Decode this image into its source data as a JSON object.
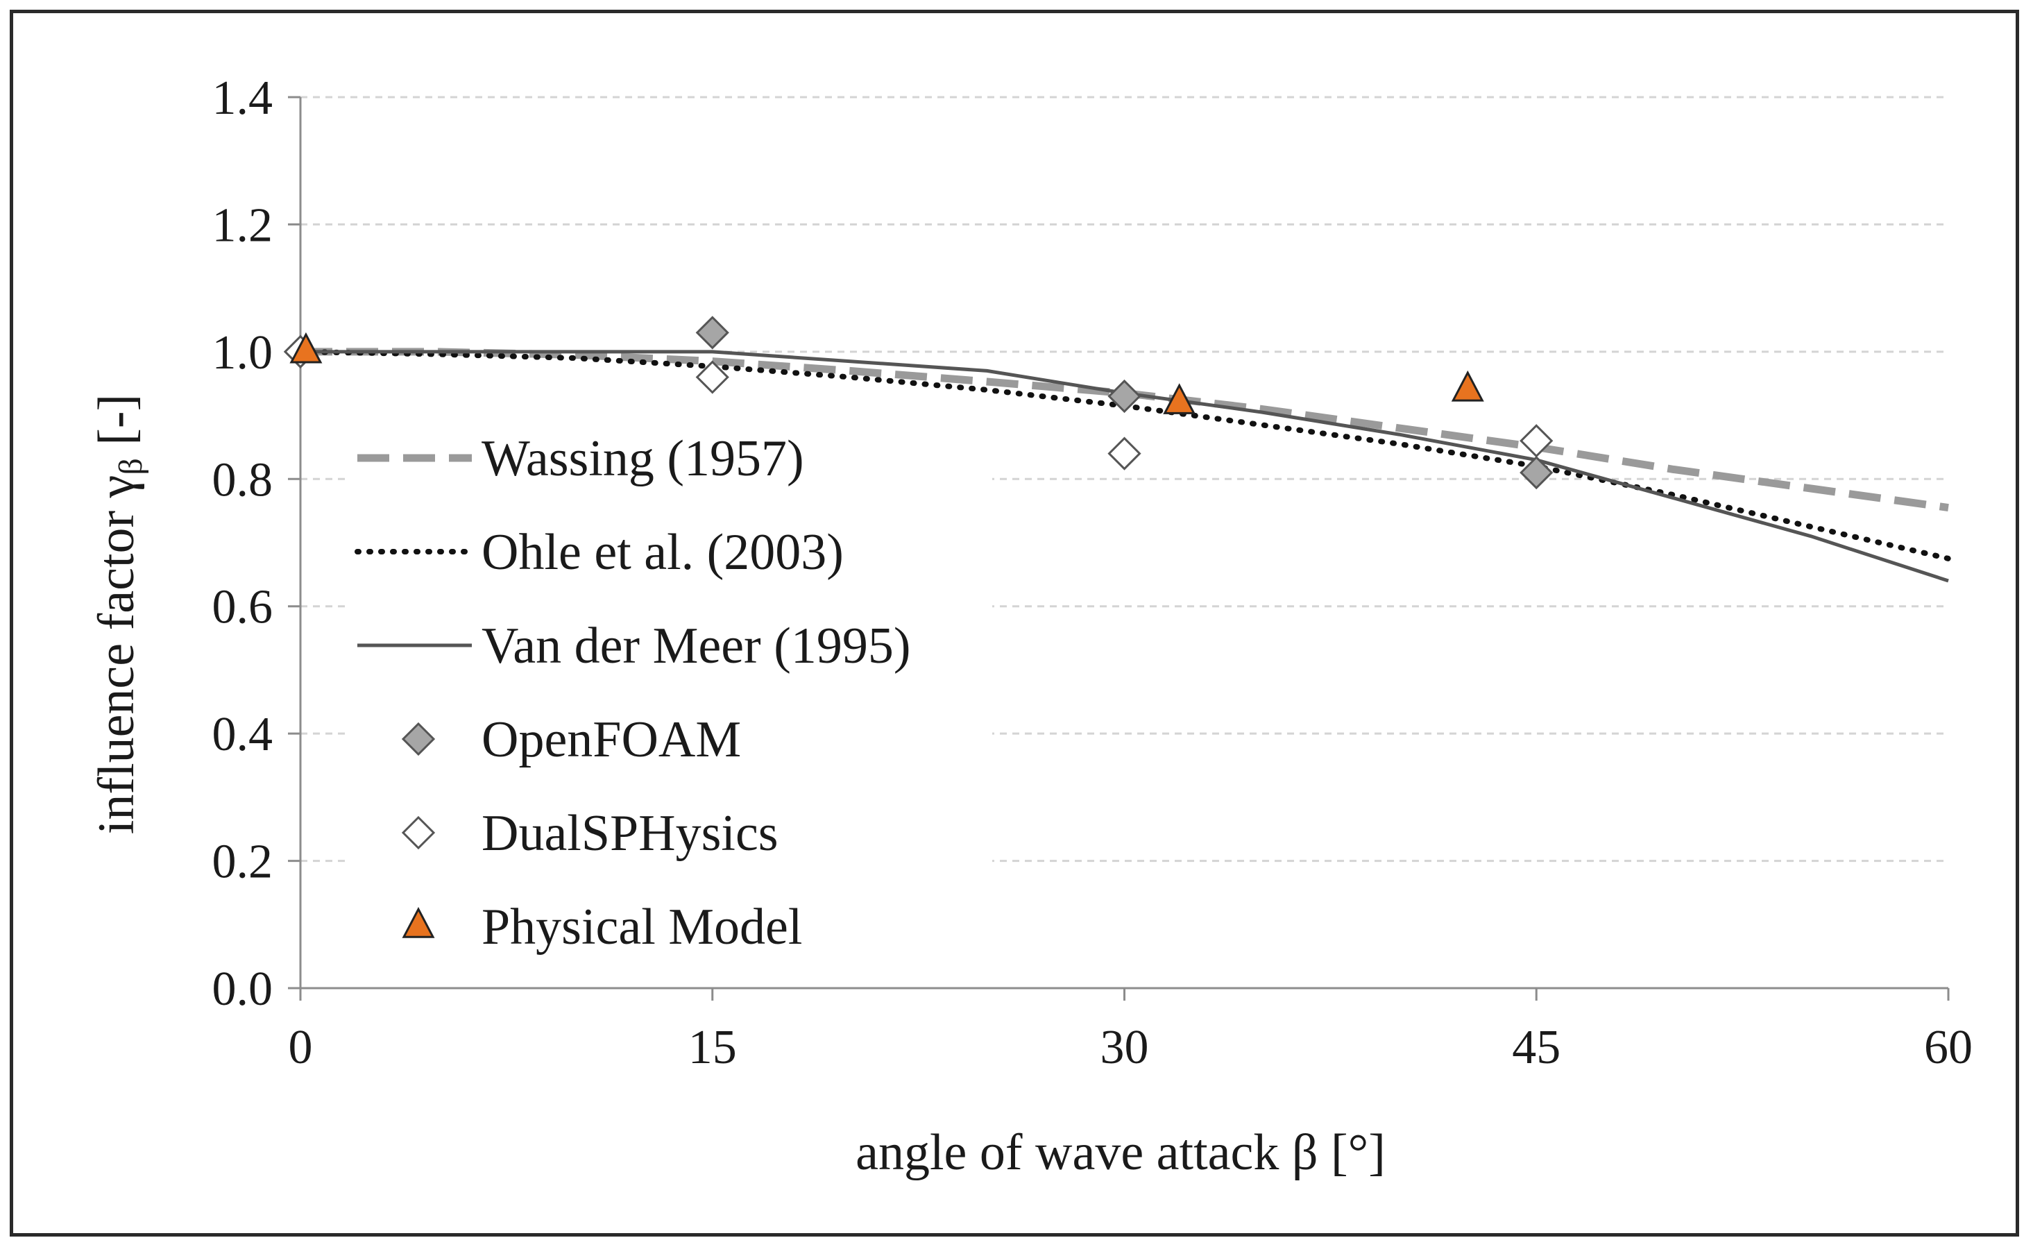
{
  "chart_data": {
    "type": "line",
    "title": "",
    "xlabel": "angle of wave attack β [°]",
    "ylabel_main": "influence factor γ",
    "ylabel_sub": "β",
    "ylabel_tail": " [-]",
    "xlim": [
      0,
      60
    ],
    "ylim": [
      0,
      1.4
    ],
    "xticks": [
      0,
      15,
      30,
      45,
      60
    ],
    "xtick_labels": [
      "0",
      "15",
      "30",
      "45",
      "60"
    ],
    "yticks": [
      0,
      0.2,
      0.4,
      0.6,
      0.8,
      1.0,
      1.2,
      1.4
    ],
    "ytick_labels": [
      "0.0",
      "0.2",
      "0.4",
      "0.6",
      "0.8",
      "1.0",
      "1.2",
      "1.4"
    ],
    "grid": "horizontal dashed",
    "legend_position": "left-center",
    "series": [
      {
        "name": "Wassing (1957)",
        "kind": "line",
        "style": "dashed",
        "color": "#9a9a9a",
        "x": [
          0,
          5,
          10,
          15,
          20,
          25,
          30,
          35,
          40,
          45,
          50,
          55,
          60
        ],
        "y": [
          1.0,
          1.0,
          0.995,
          0.985,
          0.97,
          0.953,
          0.935,
          0.91,
          0.88,
          0.85,
          0.815,
          0.785,
          0.755
        ]
      },
      {
        "name": "Ohle et al. (2003)",
        "kind": "line",
        "style": "dotted",
        "color": "#111111",
        "x": [
          0,
          5,
          10,
          15,
          20,
          25,
          30,
          35,
          40,
          45,
          50,
          55,
          60
        ],
        "y": [
          1.0,
          0.996,
          0.99,
          0.977,
          0.96,
          0.94,
          0.915,
          0.885,
          0.855,
          0.82,
          0.775,
          0.725,
          0.675
        ]
      },
      {
        "name": "Van der Meer (1995)",
        "kind": "line",
        "style": "solid",
        "color": "#555555",
        "x": [
          0,
          15,
          25,
          30,
          35,
          40,
          45,
          50,
          55,
          60
        ],
        "y": [
          1.0,
          1.0,
          0.97,
          0.935,
          0.905,
          0.87,
          0.83,
          0.77,
          0.71,
          0.64
        ]
      },
      {
        "name": "OpenFOAM",
        "kind": "marker",
        "marker": "diamond",
        "color": "#a6a6a6",
        "x": [
          0,
          15,
          30,
          45
        ],
        "y": [
          1.0,
          1.03,
          0.93,
          0.81
        ]
      },
      {
        "name": "DualSPHysics",
        "kind": "marker",
        "marker": "diamond",
        "color": "#ffffff",
        "x": [
          0,
          15,
          30,
          45
        ],
        "y": [
          1.0,
          0.96,
          0.84,
          0.86
        ]
      },
      {
        "name": "Physical Model",
        "kind": "marker",
        "marker": "triangle",
        "color": "#e8731f",
        "x": [
          0.2,
          32.0,
          42.5
        ],
        "y": [
          1.0,
          0.92,
          0.94
        ]
      }
    ]
  }
}
